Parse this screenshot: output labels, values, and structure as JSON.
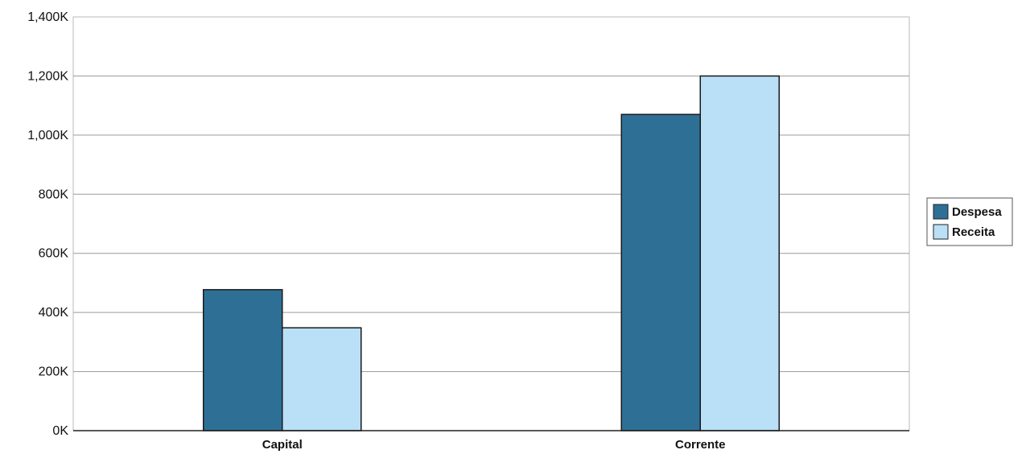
{
  "chart_data": {
    "type": "bar",
    "title": "",
    "xlabel": "",
    "ylabel": "",
    "categories": [
      "Capital",
      "Corrente"
    ],
    "series": [
      {
        "name": "Despesa",
        "values": [
          477,
          1070
        ],
        "color": "#2e6f96"
      },
      {
        "name": "Receita",
        "values": [
          348,
          1200
        ],
        "color": "#b9e0f6"
      }
    ],
    "ylim": [
      0,
      1400
    ],
    "yticks": [
      {
        "value": 0,
        "label": "0K"
      },
      {
        "value": 200,
        "label": "200K"
      },
      {
        "value": 400,
        "label": "400K"
      },
      {
        "value": 600,
        "label": "600K"
      },
      {
        "value": 800,
        "label": "800K"
      },
      {
        "value": 1000,
        "label": "1,000K"
      },
      {
        "value": 1200,
        "label": "1,200K"
      },
      {
        "value": 1400,
        "label": "1,400K"
      }
    ],
    "grid": true,
    "legend_position": "right"
  }
}
